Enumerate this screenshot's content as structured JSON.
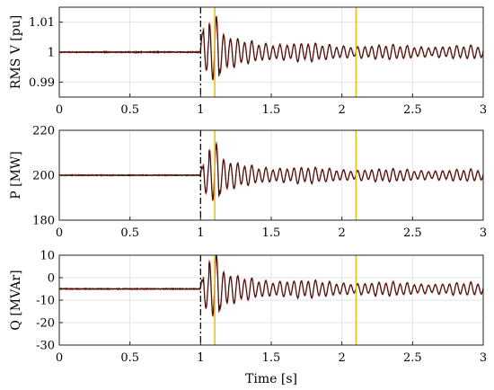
{
  "chart_data": [
    {
      "type": "line",
      "ylabel": "RMS V [pu]",
      "xlabel": "",
      "xlim": [
        0,
        3
      ],
      "ylim": [
        0.985,
        1.015
      ],
      "xticks": [
        "0",
        "0.5",
        "1",
        "1.5",
        "2",
        "2.5",
        "3"
      ],
      "yticks": [
        "0.99",
        "1",
        "1.01"
      ],
      "ytick_values": [
        0.99,
        1.0,
        1.01
      ],
      "baseline": 1.0,
      "fault_time": 1.0,
      "event_times": [
        1.1,
        2.1
      ],
      "peak_deviation": 0.011,
      "oscillation_hz": 20,
      "grid": true,
      "series": [
        {
          "color": "#d62a1e",
          "style": "solid"
        },
        {
          "color": "#1a1a1a",
          "style": "solid"
        }
      ]
    },
    {
      "type": "line",
      "ylabel": "P [MW]",
      "xlabel": "",
      "xlim": [
        0,
        3
      ],
      "ylim": [
        180,
        220
      ],
      "xticks": [
        "0",
        "0.5",
        "1",
        "1.5",
        "2",
        "2.5",
        "3"
      ],
      "yticks": [
        "180",
        "200",
        "220"
      ],
      "ytick_values": [
        180,
        200,
        220
      ],
      "baseline": 200,
      "fault_time": 1.0,
      "event_times": [
        1.1,
        2.1
      ],
      "peak_deviation": 13,
      "oscillation_hz": 20,
      "grid": true,
      "series": [
        {
          "color": "#d62a1e",
          "style": "solid"
        },
        {
          "color": "#1a1a1a",
          "style": "solid"
        }
      ]
    },
    {
      "type": "line",
      "ylabel": "Q [MVAr]",
      "xlabel": "Time [s]",
      "xlim": [
        0,
        3
      ],
      "ylim": [
        -30,
        10
      ],
      "xticks": [
        "0",
        "0.5",
        "1",
        "1.5",
        "2",
        "2.5",
        "3"
      ],
      "yticks": [
        "-30",
        "-20",
        "-10",
        "0",
        "10"
      ],
      "ytick_values": [
        -30,
        -20,
        -10,
        0,
        10
      ],
      "baseline": -5,
      "fault_time": 1.0,
      "event_times": [
        1.1,
        2.1
      ],
      "peak_deviation": 14,
      "oscillation_hz": 20,
      "grid": true,
      "series": [
        {
          "color": "#d62a1e",
          "style": "solid"
        },
        {
          "color": "#1a1a1a",
          "style": "solid"
        }
      ]
    }
  ]
}
